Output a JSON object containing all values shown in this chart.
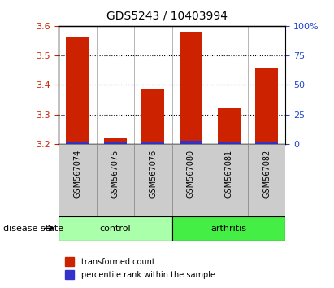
{
  "title": "GDS5243 / 10403994",
  "samples": [
    "GSM567074",
    "GSM567075",
    "GSM567076",
    "GSM567080",
    "GSM567081",
    "GSM567082"
  ],
  "red_values": [
    3.56,
    3.22,
    3.385,
    3.58,
    3.32,
    3.46
  ],
  "blue_heights": [
    0.008,
    0.008,
    0.008,
    0.009,
    0.008,
    0.008
  ],
  "y_min": 3.2,
  "y_max": 3.6,
  "y_ticks": [
    3.2,
    3.3,
    3.4,
    3.5,
    3.6
  ],
  "grid_yticks": [
    3.3,
    3.4,
    3.5
  ],
  "right_y_ticks": [
    0,
    25,
    50,
    75,
    100
  ],
  "right_y_labels": [
    "0",
    "25",
    "50",
    "75",
    "100%"
  ],
  "group_control_label": "control",
  "group_arthritis_label": "arthritis",
  "control_indices": [
    0,
    1,
    2
  ],
  "arthritis_indices": [
    3,
    4,
    5
  ],
  "control_color": "#AAFFAA",
  "arthritis_color": "#44EE44",
  "bar_width": 0.6,
  "red_color": "#CC2200",
  "blue_color": "#3333CC",
  "left_axis_color": "#CC2200",
  "right_axis_color": "#2244CC",
  "grid_color": "#000000",
  "sample_bg_color": "#CCCCCC",
  "plot_bg": "#FFFFFF",
  "disease_state_label": "disease state",
  "legend_red_label": "transformed count",
  "legend_blue_label": "percentile rank within the sample",
  "title_fontsize": 10,
  "tick_fontsize": 8,
  "label_fontsize": 8
}
